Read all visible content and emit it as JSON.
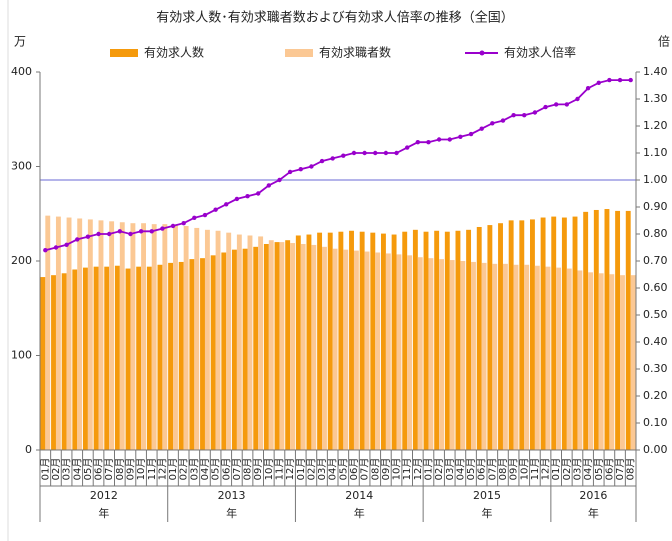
{
  "chart_data": {
    "type": "bar_line",
    "title": "有効求人数･有効求職者数および有効求人倍率の推移（全国）",
    "y_unit": "万",
    "y2_unit": "倍",
    "categories": [
      "01月",
      "02月",
      "03月",
      "04月",
      "05月",
      "06月",
      "07月",
      "08月",
      "09月",
      "10月",
      "11月",
      "12月",
      "01月",
      "02月",
      "03月",
      "04月",
      "05月",
      "06月",
      "07月",
      "08月",
      "09月",
      "10月",
      "11月",
      "12月",
      "01月",
      "02月",
      "03月",
      "04月",
      "05月",
      "06月",
      "07月",
      "08月",
      "09月",
      "10月",
      "11月",
      "12月",
      "01月",
      "02月",
      "03月",
      "04月",
      "05月",
      "06月",
      "07月",
      "08月",
      "09月",
      "10月",
      "11月",
      "12月",
      "01月",
      "02月",
      "03月",
      "04月",
      "05月",
      "06月",
      "07月",
      "08月"
    ],
    "year_groups": [
      {
        "label": "2012",
        "unit": "年",
        "months": 12
      },
      {
        "label": "2013",
        "unit": "年",
        "months": 12
      },
      {
        "label": "2014",
        "unit": "年",
        "months": 12
      },
      {
        "label": "2015",
        "unit": "年",
        "months": 12
      },
      {
        "label": "2016",
        "unit": "年",
        "months": 8
      }
    ],
    "series": [
      {
        "name": "有効求人数",
        "color": "#f59a0c",
        "kind": "bar",
        "values": [
          183,
          185,
          187,
          191,
          193,
          194,
          194,
          195,
          192,
          194,
          194,
          196,
          198,
          199,
          202,
          203,
          206,
          209,
          212,
          213,
          215,
          218,
          220,
          222,
          227,
          228,
          230,
          230,
          231,
          232,
          231,
          230,
          229,
          228,
          231,
          233,
          231,
          232,
          231,
          232,
          233,
          236,
          238,
          240,
          243,
          243,
          244,
          246,
          247,
          246,
          247,
          252,
          254,
          255,
          253,
          253
        ]
      },
      {
        "name": "有効求職者数",
        "color": "#fbc894",
        "kind": "bar",
        "values": [
          248,
          247,
          246,
          245,
          244,
          243,
          242,
          241,
          240,
          240,
          239,
          239,
          238,
          237,
          235,
          233,
          232,
          230,
          228,
          227,
          226,
          222,
          220,
          219,
          218,
          217,
          215,
          213,
          212,
          211,
          210,
          209,
          208,
          207,
          206,
          204,
          203,
          202,
          201,
          200,
          199,
          198,
          197,
          197,
          196,
          196,
          195,
          194,
          193,
          192,
          190,
          188,
          187,
          186,
          185,
          185
        ]
      },
      {
        "name": "有効求人倍率",
        "color": "#9900cc",
        "kind": "line",
        "axis": "y2",
        "values": [
          0.74,
          0.75,
          0.76,
          0.78,
          0.79,
          0.8,
          0.8,
          0.81,
          0.8,
          0.81,
          0.81,
          0.82,
          0.83,
          0.84,
          0.86,
          0.87,
          0.89,
          0.91,
          0.93,
          0.94,
          0.95,
          0.98,
          1.0,
          1.03,
          1.04,
          1.05,
          1.07,
          1.08,
          1.09,
          1.1,
          1.1,
          1.1,
          1.1,
          1.1,
          1.12,
          1.14,
          1.14,
          1.15,
          1.15,
          1.16,
          1.17,
          1.19,
          1.21,
          1.22,
          1.24,
          1.24,
          1.25,
          1.27,
          1.28,
          1.28,
          1.3,
          1.34,
          1.36,
          1.37,
          1.37,
          1.37
        ]
      }
    ],
    "ylim": [
      0,
      400
    ],
    "yticks": [
      0,
      100,
      200,
      300,
      400
    ],
    "y2lim": [
      0,
      1.4
    ],
    "y2ticks": [
      {
        "value": 0,
        "label": "0.00"
      },
      {
        "value": 0.1,
        "label": "0.10"
      },
      {
        "value": 0.2,
        "label": "0.20"
      },
      {
        "value": 0.3,
        "label": "0.30"
      },
      {
        "value": 0.4,
        "label": "0.40"
      },
      {
        "value": 0.5,
        "label": "0.50"
      },
      {
        "value": 0.6,
        "label": "0.60"
      },
      {
        "value": 0.7,
        "label": "0.70"
      },
      {
        "value": 0.8,
        "label": "0.80"
      },
      {
        "value": 0.9,
        "label": "0.90"
      },
      {
        "value": 1,
        "label": "1.00"
      },
      {
        "value": 1.1,
        "label": "1.10"
      },
      {
        "value": 1.2,
        "label": "1.20"
      },
      {
        "value": 1.3,
        "label": "1.30"
      },
      {
        "value": 1.4,
        "label": "1.40"
      }
    ],
    "reference_line": {
      "axis": "y2",
      "value": 1,
      "color": "#8888dd"
    },
    "legend": "top"
  }
}
